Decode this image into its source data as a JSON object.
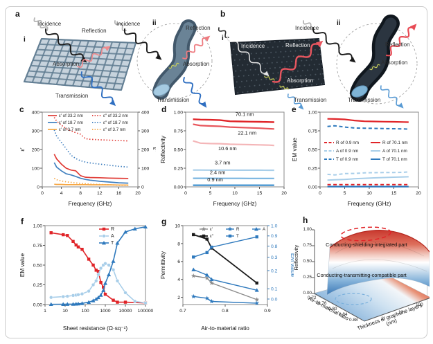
{
  "figure": {
    "panels": {
      "a": {
        "letter": "a",
        "i": "i",
        "ii": "ii",
        "labels": {
          "incidence_i": "Incidence",
          "reflection_i": "Reflection",
          "absorption_i": "Absorption",
          "transmission_i": "Transmission",
          "incidence_ii": "Incidence",
          "reflection_ii": "Reflection",
          "absorption_ii": "Absorption",
          "transmission_ii": "Transmission"
        }
      },
      "b": {
        "letter": "b",
        "i": "i",
        "ii": "ii",
        "labels": {
          "incidence_i": "Incidence",
          "reflection_i": "Reflection",
          "absorption_i": "Absorption",
          "transmission_i": "Transmission",
          "incidence_ii": "Incidence",
          "reflection_ii": "Reflection",
          "absorption_ii": "Absorption",
          "transmission_ii": "Transmission"
        }
      },
      "c": {
        "letter": "c"
      },
      "d": {
        "letter": "d"
      },
      "e": {
        "letter": "e"
      },
      "f": {
        "letter": "f"
      },
      "g": {
        "letter": "g"
      },
      "h": {
        "letter": "h"
      }
    }
  },
  "chart_data": {
    "c": {
      "type": "line",
      "xlabel": "Frequency (GHz)",
      "x_range": [
        0,
        20
      ],
      "x_ticks": [
        0,
        4,
        8,
        12,
        16,
        20
      ],
      "ylabel_left": "ε′",
      "ylabel_right": "ε″",
      "y_range": [
        0,
        400
      ],
      "y_ticks": [
        0,
        100,
        200,
        300,
        400
      ],
      "mirror_right_ticks": true,
      "x": [
        2.5,
        3,
        4,
        5,
        6,
        7,
        8,
        9,
        10,
        12,
        14,
        16,
        18
      ],
      "series": [
        {
          "name": "ε′ of 33.2 nm",
          "color": "#e03a34",
          "style": "solid",
          "values": [
            175,
            150,
            122,
            100,
            90,
            86,
            60,
            52,
            50,
            49,
            47,
            46,
            45
          ]
        },
        {
          "name": "ε′ of 18.7 nm",
          "color": "#3f7fbf",
          "style": "solid",
          "values": [
            130,
            106,
            86,
            70,
            64,
            56,
            46,
            40,
            36,
            30,
            26,
            22,
            20
          ]
        },
        {
          "name": "ε′ of 3.7 nm",
          "color": "#f6a642",
          "style": "solid",
          "values": [
            14,
            13,
            13,
            12,
            12,
            12,
            12,
            12,
            11,
            11,
            11,
            10,
            10
          ]
        },
        {
          "name": "ε″ of 33.2 nm",
          "color": "#e03a34",
          "style": "dotted",
          "values": [
            372,
            352,
            330,
            312,
            300,
            290,
            282,
            258,
            255,
            252,
            250,
            248,
            246
          ]
        },
        {
          "name": "ε″ of 18.7 nm",
          "color": "#3f7fbf",
          "style": "dotted",
          "values": [
            305,
            272,
            238,
            205,
            170,
            152,
            140,
            133,
            128,
            122,
            116,
            110,
            106
          ]
        },
        {
          "name": "ε″ of 3.7 nm",
          "color": "#f6a642",
          "style": "dotted",
          "values": [
            46,
            38,
            32,
            27,
            24,
            21,
            19,
            17,
            15,
            13,
            11,
            9,
            8
          ]
        }
      ]
    },
    "d": {
      "type": "line",
      "xlabel": "Frequency (GHz)",
      "x_range": [
        0,
        20
      ],
      "x_ticks": [
        0,
        5,
        10,
        15,
        20
      ],
      "ylabel_left": "Reflectivity",
      "y_range": [
        0,
        1
      ],
      "y_ticks": [
        "0.00",
        "0.25",
        "0.50",
        "0.75",
        "1.00"
      ],
      "x": [
        1.5,
        3,
        5,
        7,
        9,
        11,
        13,
        15,
        17,
        18
      ],
      "series": [
        {
          "name": "70.1 nm",
          "color": "#e02428",
          "width": 2.4,
          "style": "solid",
          "values": [
            0.905,
            0.9,
            0.897,
            0.893,
            0.878,
            0.875,
            0.872,
            0.87,
            0.868,
            0.866
          ]
        },
        {
          "name": "22.1 nm",
          "color": "#e8555b",
          "width": 2.2,
          "style": "solid",
          "values": [
            0.838,
            0.82,
            0.815,
            0.81,
            0.8,
            0.795,
            0.79,
            0.785,
            0.778,
            0.775
          ]
        },
        {
          "name": "10.6 nm",
          "color": "#f4b6b8",
          "width": 2.2,
          "style": "solid",
          "values": [
            0.615,
            0.585,
            0.58,
            0.578,
            0.57,
            0.568,
            0.565,
            0.562,
            0.558,
            0.555
          ]
        },
        {
          "name": "3.7 nm",
          "color": "#a8cee9",
          "width": 2.2,
          "style": "solid",
          "values": [
            0.225,
            0.225,
            0.224,
            0.224,
            0.224,
            0.223,
            0.223,
            0.223,
            0.222,
            0.222
          ]
        },
        {
          "name": "2.4 nm",
          "color": "#79b5e0",
          "width": 2.2,
          "style": "solid",
          "values": [
            0.115,
            0.115,
            0.115,
            0.114,
            0.114,
            0.114,
            0.113,
            0.113,
            0.113,
            0.113
          ]
        },
        {
          "name": "0.9 nm",
          "color": "#3d8fcd",
          "width": 2.2,
          "style": "solid",
          "values": [
            0.022,
            0.022,
            0.022,
            0.022,
            0.022,
            0.022,
            0.022,
            0.022,
            0.022,
            0.022
          ]
        }
      ],
      "annotations": [
        {
          "text": "70.1 nm",
          "x": 12,
          "y": 0.95
        },
        {
          "text": "22.1 nm",
          "x": 12.5,
          "y": 0.7
        },
        {
          "text": "10.6 nm",
          "x": 8.5,
          "y": 0.49
        },
        {
          "text": "3.7 nm",
          "x": 7.5,
          "y": 0.3
        },
        {
          "text": "2.4 nm",
          "x": 6.5,
          "y": 0.172
        },
        {
          "text": "0.9 nm",
          "x": 6,
          "y": 0.075
        }
      ]
    },
    "e": {
      "type": "line",
      "xlabel": "Frequency (GHz)",
      "x_range": [
        0,
        20
      ],
      "x_ticks": [
        0,
        5,
        10,
        15,
        20
      ],
      "ylabel_left": "EM value",
      "y_range": [
        0,
        1
      ],
      "y_ticks": [
        "0.00",
        "0.25",
        "0.50",
        "0.75",
        "1.00"
      ],
      "x": [
        1.5,
        3,
        5,
        7,
        9,
        11,
        13,
        15,
        17,
        18
      ],
      "series": [
        {
          "name": "R of 0.9 nm",
          "color": "#e02428",
          "style": "dashed",
          "width": 2,
          "values": [
            0.03,
            0.03,
            0.03,
            0.03,
            0.03,
            0.03,
            0.03,
            0.03,
            0.03,
            0.03
          ]
        },
        {
          "name": "A of 0.9 nm",
          "color": "#a8cee9",
          "style": "dashed",
          "width": 2,
          "values": [
            0.168,
            0.16,
            0.178,
            0.18,
            0.188,
            0.19,
            0.192,
            0.193,
            0.195,
            0.2
          ]
        },
        {
          "name": "T of 0.9 nm",
          "color": "#2e79bd",
          "style": "dashed",
          "width": 2,
          "values": [
            0.808,
            0.818,
            0.8,
            0.788,
            0.785,
            0.782,
            0.78,
            0.778,
            0.775,
            0.773
          ]
        },
        {
          "name": "R of 70.1 nm",
          "color": "#e02428",
          "style": "solid",
          "width": 2.2,
          "values": [
            0.91,
            0.908,
            0.903,
            0.888,
            0.878,
            0.875,
            0.872,
            0.87,
            0.868,
            0.866
          ]
        },
        {
          "name": "A of 70.1 nm",
          "color": "#a8cee9",
          "style": "solid",
          "width": 2,
          "values": [
            0.09,
            0.095,
            0.1,
            0.108,
            0.115,
            0.12,
            0.125,
            0.13,
            0.133,
            0.135
          ]
        },
        {
          "name": "T of 70.1 nm",
          "color": "#2e79bd",
          "style": "solid",
          "width": 2.2,
          "values": [
            0.004,
            0.004,
            0.004,
            0.004,
            0.004,
            0.004,
            0.004,
            0.004,
            0.004,
            0.004
          ]
        }
      ]
    },
    "f": {
      "type": "line",
      "x_scale": "log",
      "xlabel": "Sheet resistance (Ω·sq⁻¹)",
      "x_range": [
        1,
        100000
      ],
      "x_ticks": [
        1,
        10,
        100,
        1000,
        10000,
        100000
      ],
      "ylabel_left": "EM value",
      "y_range": [
        0,
        1
      ],
      "y_ticks": [
        "0.00",
        "0.25",
        "0.50",
        "0.75",
        "1.00"
      ],
      "series": [
        {
          "name": "R",
          "color": "#e02428",
          "marker": "square",
          "width": 1.6,
          "x": [
            2,
            8,
            13,
            25,
            35,
            45,
            70,
            150,
            250,
            350,
            450,
            600,
            800,
            1000,
            2500,
            4000,
            10000,
            100000
          ],
          "values": [
            0.91,
            0.885,
            0.875,
            0.8,
            0.755,
            0.73,
            0.7,
            0.575,
            0.5,
            0.435,
            0.42,
            0.28,
            0.22,
            0.13,
            0.055,
            0.03,
            0.03,
            0.02
          ]
        },
        {
          "name": "A",
          "color": "#a8cee9",
          "marker": "circle",
          "width": 1.6,
          "x": [
            2,
            8,
            13,
            25,
            35,
            45,
            70,
            150,
            250,
            350,
            450,
            600,
            800,
            1000,
            1500,
            2500,
            4000,
            10000,
            30000,
            100000
          ],
          "values": [
            0.09,
            0.1,
            0.105,
            0.115,
            0.12,
            0.125,
            0.135,
            0.17,
            0.25,
            0.3,
            0.38,
            0.46,
            0.5,
            0.52,
            0.5,
            0.44,
            0.3,
            0.15,
            0.04,
            0.02
          ]
        },
        {
          "name": "T",
          "color": "#2e79bd",
          "marker": "triangle",
          "width": 1.6,
          "x": [
            2,
            8,
            13,
            25,
            35,
            45,
            70,
            150,
            250,
            350,
            450,
            600,
            800,
            1000,
            1500,
            2500,
            4000,
            10000,
            30000,
            100000
          ],
          "values": [
            0.003,
            0.004,
            0.005,
            0.006,
            0.008,
            0.01,
            0.015,
            0.03,
            0.05,
            0.07,
            0.09,
            0.12,
            0.18,
            0.27,
            0.38,
            0.55,
            0.78,
            0.92,
            0.96,
            0.985
          ]
        }
      ]
    },
    "g": {
      "type": "line",
      "xlabel": "Air-to-material ratio",
      "x_range": [
        0.7,
        0.9
      ],
      "x_ticks": [
        "0.7",
        "0.8",
        "0.9"
      ],
      "ylabel_left": "Permittivity",
      "y_range_left": [
        1.2,
        10
      ],
      "y_ticks_left": [
        2,
        4,
        6,
        8,
        10
      ],
      "ylabel_right": "EM value",
      "y_ticks_right": [
        {
          "label": "1.0",
          "pos": 0.0
        },
        {
          "label": "0.9",
          "pos": 0.13
        },
        {
          "label": "0.8",
          "pos": 0.26
        },
        {
          "label": "0.3",
          "pos": 0.4
        },
        {
          "label": "0.2",
          "pos": 0.57
        },
        {
          "label": "0.1",
          "pos": 0.8
        },
        {
          "label": "0.0",
          "pos": 0.93
        }
      ],
      "x": [
        0.725,
        0.757,
        0.768,
        0.875
      ],
      "series": [
        {
          "name": "ε′",
          "color": "#8c8c8c",
          "marker": "star",
          "width": 1.4,
          "axis": "left",
          "values": [
            4.4,
            4.15,
            3.6,
            1.75
          ]
        },
        {
          "name": "ε″",
          "color": "#1a1a1a",
          "marker": "square",
          "width": 1.8,
          "axis": "left",
          "values": [
            9.0,
            8.5,
            7.5,
            3.6
          ]
        },
        {
          "name": "R",
          "color": "#2e79bd",
          "marker": "star",
          "width": 1.4,
          "axis": "right",
          "values_plot": [
            2.1,
            1.9,
            1.55,
            1.35
          ],
          "em_values_approx": [
            0.05,
            0.04,
            0.02,
            0.01
          ]
        },
        {
          "name": "T",
          "color": "#2e79bd",
          "marker": "square",
          "width": 1.4,
          "axis": "right",
          "values_plot": [
            6.5,
            7.0,
            7.6,
            8.75
          ],
          "em_values_approx": [
            0.35,
            0.45,
            0.78,
            0.88
          ]
        },
        {
          "name": "A",
          "color": "#2e79bd",
          "marker": "triangle",
          "width": 1.4,
          "axis": "right",
          "values_plot": [
            5.1,
            4.5,
            4.0,
            2.8
          ],
          "em_values_approx": [
            0.22,
            0.19,
            0.16,
            0.1
          ]
        }
      ]
    },
    "h": {
      "type": "surface3d",
      "zlabel": "Reflectivity",
      "z_ticks": [
        "1.00",
        "0.75",
        "0.50",
        "0.25",
        "0.00"
      ],
      "xlabel": "Air-to-material ratio",
      "x_ticks": [
        "0.72",
        "0.76",
        "0.80",
        "0.84",
        "0.88"
      ],
      "ylabel": "Thickness of graphene layers (nm)",
      "y_ticks": [
        "1",
        "10",
        "100"
      ],
      "annotations": [
        "Conducting-shielding-integrated part",
        "Conducting-transmitting-compatible part"
      ],
      "colormap": [
        "#2166ac",
        "#ffffff",
        "#d73027"
      ]
    }
  }
}
